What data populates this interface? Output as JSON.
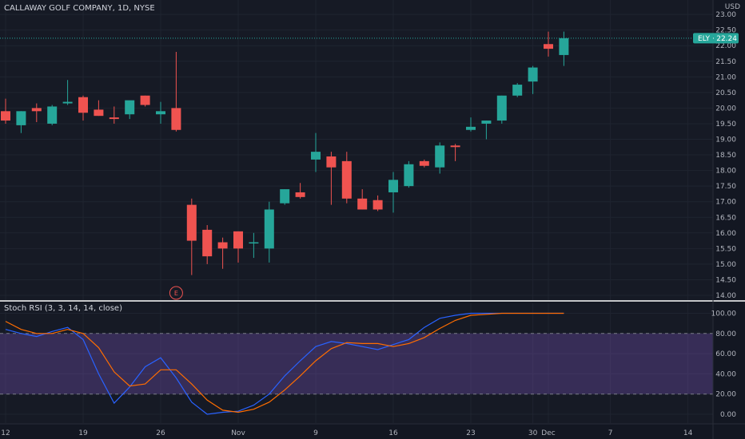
{
  "header": {
    "symbol_title": "CALLAWAY GOLF COMPANY, 1D, NYSE",
    "currency": "USD"
  },
  "price_badge": {
    "ticker": "ELY",
    "price": "22.24"
  },
  "earnings_marker": "E",
  "indicator": {
    "label": "Stoch RSI (3, 3, 14, 14, close)"
  },
  "colors": {
    "background": "#131722",
    "up": "#26a69a",
    "down": "#ef5350",
    "k_line": "#2962ff",
    "d_line": "#ff6d00",
    "band": "#7e57c2"
  },
  "chart_data": [
    {
      "type": "candlestick",
      "title": "CALLAWAY GOLF COMPANY, 1D, NYSE",
      "ylim": [
        14.0,
        23.0
      ],
      "yticks": [
        "14.00",
        "14.50",
        "15.00",
        "15.50",
        "16.00",
        "16.50",
        "17.00",
        "17.50",
        "18.00",
        "18.50",
        "19.00",
        "19.50",
        "20.00",
        "20.50",
        "21.00",
        "21.50",
        "22.00",
        "22.50",
        "23.00"
      ],
      "xticks": [
        {
          "label": "12",
          "day": 0
        },
        {
          "label": "19",
          "day": 5
        },
        {
          "label": "26",
          "day": 10
        },
        {
          "label": "Nov",
          "day": 15
        },
        {
          "label": "9",
          "day": 20
        },
        {
          "label": "16",
          "day": 25
        },
        {
          "label": "23",
          "day": 30
        },
        {
          "label": "30",
          "day": 34
        },
        {
          "label": "Dec",
          "day": 35
        },
        {
          "label": "7",
          "day": 39
        },
        {
          "label": "14",
          "day": 44
        }
      ],
      "last_price": 22.24,
      "earnings_day": 11,
      "candles": [
        {
          "day": 0,
          "o": 19.9,
          "h": 20.3,
          "l": 19.5,
          "c": 19.6
        },
        {
          "day": 1,
          "o": 19.45,
          "h": 19.9,
          "l": 19.2,
          "c": 19.9
        },
        {
          "day": 2,
          "o": 20.0,
          "h": 20.15,
          "l": 19.55,
          "c": 19.9
        },
        {
          "day": 3,
          "o": 19.5,
          "h": 20.1,
          "l": 19.45,
          "c": 20.05
        },
        {
          "day": 4,
          "o": 20.15,
          "h": 20.9,
          "l": 20.1,
          "c": 20.2
        },
        {
          "day": 5,
          "o": 20.35,
          "h": 20.4,
          "l": 19.6,
          "c": 19.85
        },
        {
          "day": 6,
          "o": 19.95,
          "h": 20.25,
          "l": 19.75,
          "c": 19.75
        },
        {
          "day": 7,
          "o": 19.7,
          "h": 20.05,
          "l": 19.5,
          "c": 19.65
        },
        {
          "day": 8,
          "o": 19.8,
          "h": 20.2,
          "l": 19.65,
          "c": 20.25
        },
        {
          "day": 9,
          "o": 20.4,
          "h": 20.4,
          "l": 20.05,
          "c": 20.1
        },
        {
          "day": 10,
          "o": 19.8,
          "h": 20.2,
          "l": 19.5,
          "c": 19.9
        },
        {
          "day": 11,
          "o": 20.0,
          "h": 21.8,
          "l": 19.25,
          "c": 19.3
        },
        {
          "day": 12,
          "o": 16.9,
          "h": 17.1,
          "l": 14.65,
          "c": 15.75
        },
        {
          "day": 13,
          "o": 16.1,
          "h": 16.25,
          "l": 15.0,
          "c": 15.25
        },
        {
          "day": 14,
          "o": 15.7,
          "h": 15.85,
          "l": 14.85,
          "c": 15.5
        },
        {
          "day": 15,
          "o": 16.05,
          "h": 16.05,
          "l": 15.05,
          "c": 15.5
        },
        {
          "day": 16,
          "o": 15.7,
          "h": 16.0,
          "l": 15.2,
          "c": 15.7
        },
        {
          "day": 17,
          "o": 15.5,
          "h": 17.0,
          "l": 15.05,
          "c": 16.75
        },
        {
          "day": 18,
          "o": 16.95,
          "h": 17.4,
          "l": 16.9,
          "c": 17.4
        },
        {
          "day": 19,
          "o": 17.3,
          "h": 17.6,
          "l": 17.1,
          "c": 17.15
        },
        {
          "day": 20,
          "o": 18.35,
          "h": 19.2,
          "l": 17.95,
          "c": 18.6
        },
        {
          "day": 21,
          "o": 18.45,
          "h": 18.6,
          "l": 16.9,
          "c": 18.1
        },
        {
          "day": 22,
          "o": 18.3,
          "h": 18.6,
          "l": 16.95,
          "c": 17.1
        },
        {
          "day": 23,
          "o": 17.1,
          "h": 17.4,
          "l": 16.75,
          "c": 16.75
        },
        {
          "day": 24,
          "o": 17.05,
          "h": 17.2,
          "l": 16.7,
          "c": 16.75
        },
        {
          "day": 25,
          "o": 17.3,
          "h": 17.95,
          "l": 16.65,
          "c": 17.7
        },
        {
          "day": 26,
          "o": 17.5,
          "h": 18.3,
          "l": 17.45,
          "c": 18.2
        },
        {
          "day": 27,
          "o": 18.3,
          "h": 18.35,
          "l": 18.1,
          "c": 18.15
        },
        {
          "day": 28,
          "o": 18.1,
          "h": 18.9,
          "l": 17.9,
          "c": 18.8
        },
        {
          "day": 29,
          "o": 18.8,
          "h": 18.85,
          "l": 18.3,
          "c": 18.75
        },
        {
          "day": 30,
          "o": 19.3,
          "h": 19.7,
          "l": 19.25,
          "c": 19.4
        },
        {
          "day": 31,
          "o": 19.5,
          "h": 19.6,
          "l": 19.0,
          "c": 19.6
        },
        {
          "day": 32,
          "o": 19.6,
          "h": 20.4,
          "l": 19.5,
          "c": 20.4
        },
        {
          "day": 33,
          "o": 20.4,
          "h": 20.8,
          "l": 20.35,
          "c": 20.75
        },
        {
          "day": 34,
          "o": 20.85,
          "h": 21.35,
          "l": 20.45,
          "c": 21.3
        },
        {
          "day": 35,
          "o": 22.05,
          "h": 22.45,
          "l": 21.65,
          "c": 21.9
        },
        {
          "day": 36,
          "o": 21.7,
          "h": 22.45,
          "l": 21.35,
          "c": 22.24
        }
      ]
    },
    {
      "type": "line",
      "title": "Stoch RSI (3, 3, 14, 14, close)",
      "ylim": [
        -10,
        110
      ],
      "yticks": [
        "0.00",
        "20.00",
        "40.00",
        "60.00",
        "80.00",
        "100.00"
      ],
      "bands": [
        20,
        80
      ],
      "series": [
        {
          "name": "K",
          "points": [
            [
              0,
              84
            ],
            [
              1,
              80
            ],
            [
              2,
              77
            ],
            [
              3,
              82
            ],
            [
              4,
              86
            ],
            [
              5,
              74
            ],
            [
              6,
              40
            ],
            [
              7,
              11
            ],
            [
              8,
              27
            ],
            [
              9,
              47
            ],
            [
              10,
              56
            ],
            [
              11,
              36
            ],
            [
              12,
              12
            ],
            [
              13,
              0
            ],
            [
              14,
              2
            ],
            [
              15,
              3
            ],
            [
              16,
              9
            ],
            [
              17,
              20
            ],
            [
              18,
              38
            ],
            [
              19,
              53
            ],
            [
              20,
              67
            ],
            [
              21,
              72
            ],
            [
              22,
              70
            ],
            [
              23,
              67
            ],
            [
              24,
              64
            ],
            [
              25,
              69
            ],
            [
              26,
              74
            ],
            [
              27,
              86
            ],
            [
              28,
              95
            ],
            [
              29,
              98
            ],
            [
              30,
              100
            ],
            [
              31,
              100
            ],
            [
              32,
              100
            ],
            [
              33,
              100
            ],
            [
              34,
              100
            ],
            [
              35,
              100
            ],
            [
              36,
              100
            ]
          ]
        },
        {
          "name": "D",
          "points": [
            [
              0,
              92
            ],
            [
              1,
              84
            ],
            [
              2,
              80
            ],
            [
              3,
              80
            ],
            [
              4,
              84
            ],
            [
              5,
              80
            ],
            [
              6,
              66
            ],
            [
              7,
              42
            ],
            [
              8,
              28
            ],
            [
              9,
              30
            ],
            [
              10,
              44
            ],
            [
              11,
              44
            ],
            [
              12,
              30
            ],
            [
              13,
              14
            ],
            [
              14,
              4
            ],
            [
              15,
              2
            ],
            [
              16,
              5
            ],
            [
              17,
              12
            ],
            [
              18,
              24
            ],
            [
              19,
              38
            ],
            [
              20,
              53
            ],
            [
              21,
              65
            ],
            [
              22,
              71
            ],
            [
              23,
              70
            ],
            [
              24,
              70
            ],
            [
              25,
              67
            ],
            [
              26,
              70
            ],
            [
              27,
              76
            ],
            [
              28,
              85
            ],
            [
              29,
              93
            ],
            [
              30,
              98
            ],
            [
              31,
              99
            ],
            [
              32,
              100
            ],
            [
              33,
              100
            ],
            [
              34,
              100
            ],
            [
              35,
              100
            ],
            [
              36,
              100
            ]
          ]
        }
      ]
    }
  ]
}
